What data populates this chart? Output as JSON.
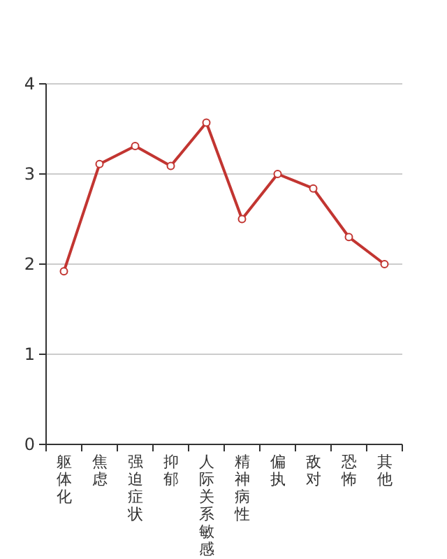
{
  "chart_data": {
    "type": "line",
    "categories": [
      "躯体化",
      "焦虑",
      "强迫症状",
      "抑郁",
      "人际关系敏感",
      "精神病性",
      "偏执",
      "敌对",
      "恐怖",
      "其他"
    ],
    "series": [
      {
        "color": "#c23531",
        "values": [
          1.92,
          3.11,
          3.31,
          3.09,
          3.57,
          2.5,
          3.0,
          2.84,
          2.3,
          2.0
        ]
      }
    ],
    "ylim": [
      0,
      4
    ],
    "yticks": [
      0,
      1,
      2,
      3,
      4
    ],
    "grid": "y",
    "marker": "circle",
    "line_style": "solid"
  }
}
